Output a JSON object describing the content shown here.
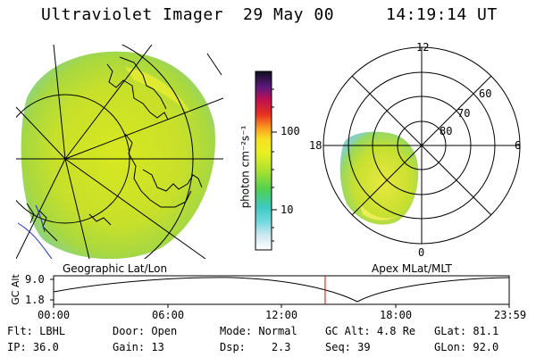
{
  "header": {
    "instrument": "Ultraviolet Imager",
    "date": "29 May 00",
    "time": "14:19:14 UT"
  },
  "colorbar": {
    "unit_label": "photon cm⁻²s⁻¹",
    "ticks": [
      "100",
      "10"
    ]
  },
  "left_panel": {
    "caption": "Geographic Lat/Lon"
  },
  "right_panel": {
    "caption": "Apex MLat/MLT",
    "mlt_labels": [
      "12",
      "18",
      "6",
      "0"
    ],
    "mlat_labels": [
      "60",
      "70",
      "80"
    ]
  },
  "altitude_plot": {
    "ylabel": "GC Alt",
    "y_ticks": [
      "9.0",
      "1.8"
    ],
    "x_ticks": [
      "00:00",
      "06:00",
      "12:00",
      "18:00",
      "23:59"
    ],
    "current_fraction": 0.596
  },
  "info": {
    "row1": {
      "flt_label": "Flt:",
      "flt_value": "LBHL",
      "door_label": "Door:",
      "door_value": "Open",
      "mode_label": "Mode:",
      "mode_value": "Normal",
      "gcalt_label": "GC Alt:",
      "gcalt_value": "4.8 Re",
      "glat_label": "GLat:",
      "glat_value": "81.1"
    },
    "row2": {
      "ip_label": "IP:",
      "ip_value": "36.0",
      "gain_label": "Gain:",
      "gain_value": "13",
      "dsp_label": "Dsp:",
      "dsp_value": "2.3",
      "seq_label": "Seq:",
      "seq_value": "39",
      "glon_label": "GLon:",
      "glon_value": "92.0"
    }
  }
}
